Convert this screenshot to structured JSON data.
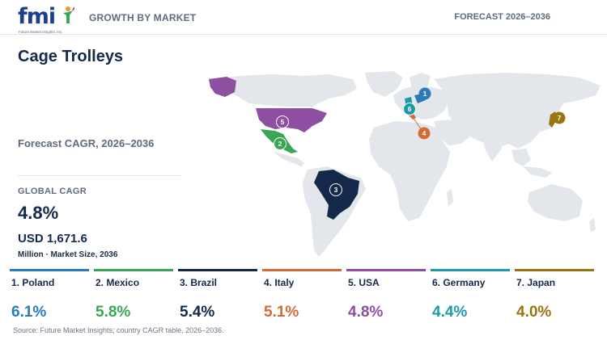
{
  "header": {
    "logo_text": "fmi",
    "logo_tagline": "Future Market Insights, Inc.",
    "left_label": "GROWTH BY MARKET",
    "right_label": "FORECAST 2026–2036"
  },
  "title": "Cage Trolleys",
  "subtitle": "Forecast CAGR, 2026–2036",
  "kpi": {
    "label": "GLOBAL CAGR",
    "value": "4.8%",
    "market_size": "USD 1,671.6",
    "note": "Million · Market Size, 2036"
  },
  "map": {
    "base_color": "#e3e6ea",
    "markers": [
      {
        "rank": "1",
        "country": "Poland",
        "color": "#2b7bb9"
      },
      {
        "rank": "2",
        "country": "Mexico",
        "color": "#3aa655"
      },
      {
        "rank": "3",
        "country": "Brazil",
        "color": "#14294a"
      },
      {
        "rank": "4",
        "country": "Italy",
        "color": "#d4693a"
      },
      {
        "rank": "5",
        "country": "USA",
        "color": "#8e4fa3"
      },
      {
        "rank": "6",
        "country": "Germany",
        "color": "#1c9aa8"
      },
      {
        "rank": "7",
        "country": "Japan",
        "color": "#9a7412"
      }
    ]
  },
  "countries": [
    {
      "label": "1. Poland",
      "cagr": "6.1%",
      "color": "#2b7bb9"
    },
    {
      "label": "2. Mexico",
      "cagr": "5.8%",
      "color": "#3aa655"
    },
    {
      "label": "3. Brazil",
      "cagr": "5.4%",
      "color": "#14294a"
    },
    {
      "label": "4. Italy",
      "cagr": "5.1%",
      "color": "#d4693a"
    },
    {
      "label": "5. USA",
      "cagr": "4.8%",
      "color": "#8e4fa3"
    },
    {
      "label": "6. Germany",
      "cagr": "4.4%",
      "color": "#1c9aa8"
    },
    {
      "label": "7. Japan",
      "cagr": "4.0%",
      "color": "#9a7412"
    }
  ],
  "source": "Source: Future Market Insights; country CAGR table, 2026–2036."
}
